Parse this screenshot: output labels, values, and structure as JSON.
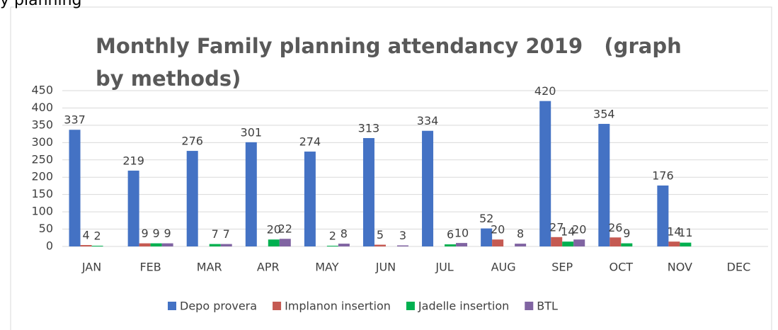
{
  "caption": "y planning",
  "chart_data": {
    "type": "bar",
    "title": "Monthly Family planning attendancy 2019   (graph by methods)",
    "categories": [
      "JAN",
      "FEB",
      "MAR",
      "APR",
      "MAY",
      "JUN",
      "JUL",
      "AUG",
      "SEP",
      "OCT",
      "NOV",
      "DEC"
    ],
    "series": [
      {
        "name": "Depo provera",
        "color": "#4472c4",
        "values": [
          337,
          219,
          276,
          301,
          274,
          313,
          334,
          52,
          420,
          354,
          176,
          null
        ]
      },
      {
        "name": "Implanon insertion",
        "color": "#c55a52",
        "values": [
          4,
          9,
          null,
          null,
          null,
          5,
          null,
          20,
          27,
          26,
          14,
          null
        ]
      },
      {
        "name": "Jadelle insertion",
        "color": "#00b050",
        "values": [
          2,
          9,
          7,
          20,
          2,
          null,
          6,
          null,
          14,
          9,
          11,
          null
        ]
      },
      {
        "name": "BTL",
        "color": "#8064a2",
        "values": [
          null,
          9,
          7,
          22,
          8,
          3,
          10,
          8,
          20,
          null,
          null,
          null
        ]
      }
    ],
    "ylim": [
      0,
      450
    ],
    "yticks": [
      0,
      50,
      100,
      150,
      200,
      250,
      300,
      350,
      400,
      450
    ],
    "grid": true,
    "legend": "bottom"
  }
}
